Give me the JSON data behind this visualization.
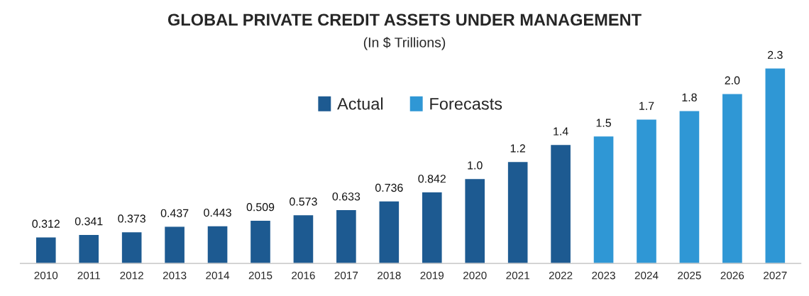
{
  "chart_data": {
    "type": "bar",
    "title": "GLOBAL PRIVATE CREDIT ASSETS UNDER MANAGEMENT",
    "subtitle": "(In $ Trillions)",
    "categories": [
      "2010",
      "2011",
      "2012",
      "2013",
      "2014",
      "2015",
      "2016",
      "2017",
      "2018",
      "2019",
      "2020",
      "2021",
      "2022",
      "2023",
      "2024",
      "2025",
      "2026",
      "2027"
    ],
    "series": [
      {
        "name": "Actual",
        "color": "#1d5a91",
        "values": [
          0.312,
          0.341,
          0.373,
          0.437,
          0.443,
          0.509,
          0.573,
          0.633,
          0.736,
          0.842,
          1.0,
          1.2,
          1.4,
          null,
          null,
          null,
          null,
          null
        ],
        "value_labels": [
          "0.312",
          "0.341",
          "0.373",
          "0.437",
          "0.443",
          "0.509",
          "0.573",
          "0.633",
          "0.736",
          "0.842",
          "1.0",
          "1.2",
          "1.4",
          null,
          null,
          null,
          null,
          null
        ]
      },
      {
        "name": "Forecasts",
        "color": "#2f97d5",
        "values": [
          null,
          null,
          null,
          null,
          null,
          null,
          null,
          null,
          null,
          null,
          null,
          null,
          null,
          1.5,
          1.7,
          1.8,
          2.0,
          2.3
        ],
        "value_labels": [
          null,
          null,
          null,
          null,
          null,
          null,
          null,
          null,
          null,
          null,
          null,
          null,
          null,
          "1.5",
          "1.7",
          "1.8",
          "2.0",
          "2.3"
        ]
      }
    ],
    "legend": "top",
    "tick_labels": "x",
    "grid": false
  }
}
